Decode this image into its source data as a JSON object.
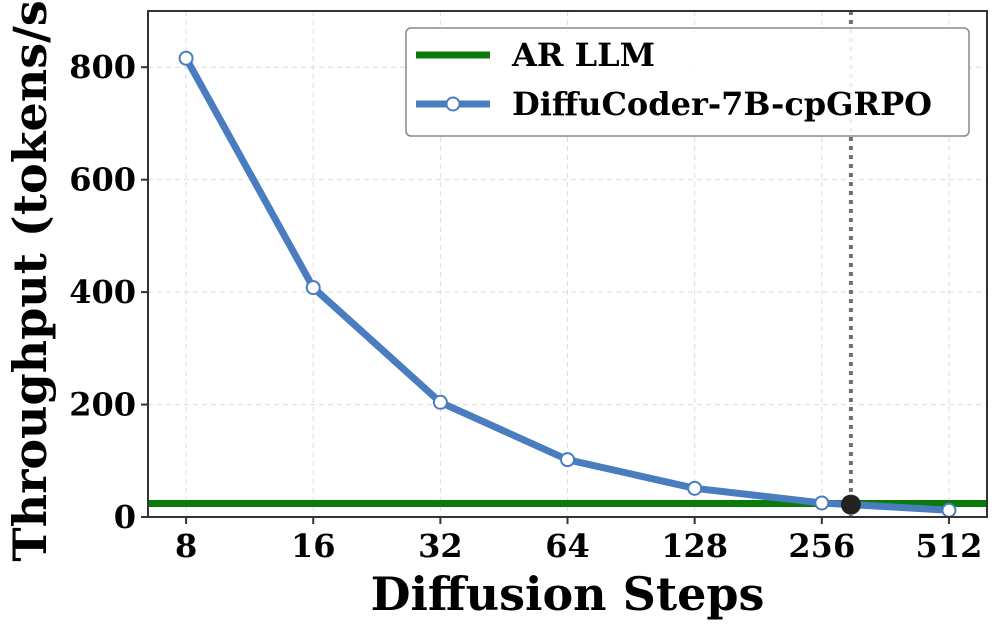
{
  "chart_data": {
    "type": "line",
    "xlabel": "Diffusion Steps",
    "ylabel": "Throughput (tokens/s)",
    "x_scale": "log2",
    "xticks": [
      8,
      16,
      32,
      64,
      128,
      256,
      512
    ],
    "xtick_labels": [
      "8",
      "16",
      "32",
      "64",
      "128",
      "256",
      "512"
    ],
    "yticks": [
      0,
      200,
      400,
      600,
      800
    ],
    "ytick_labels": [
      "0",
      "200",
      "400",
      "600",
      "800"
    ],
    "xlim": [
      6.5,
      630
    ],
    "ylim": [
      0,
      900
    ],
    "grid": true,
    "legend_position": "top-right",
    "series": [
      {
        "name": "DiffuCoder-7B-cpGRPO",
        "color": "#4a7cc0",
        "marker": "open-circle",
        "x": [
          8,
          16,
          32,
          64,
          128,
          256,
          512
        ],
        "y": [
          816,
          408,
          204,
          102,
          51,
          25,
          12
        ]
      }
    ],
    "reference_lines": [
      {
        "name": "AR LLM",
        "orientation": "horizontal",
        "y": 24,
        "color": "#0a7a0a"
      },
      {
        "orientation": "vertical",
        "x": 300,
        "color": "#707070",
        "style": "dotted"
      }
    ],
    "intersection_point": {
      "x": 300,
      "y": 22,
      "color": "#222222"
    }
  }
}
